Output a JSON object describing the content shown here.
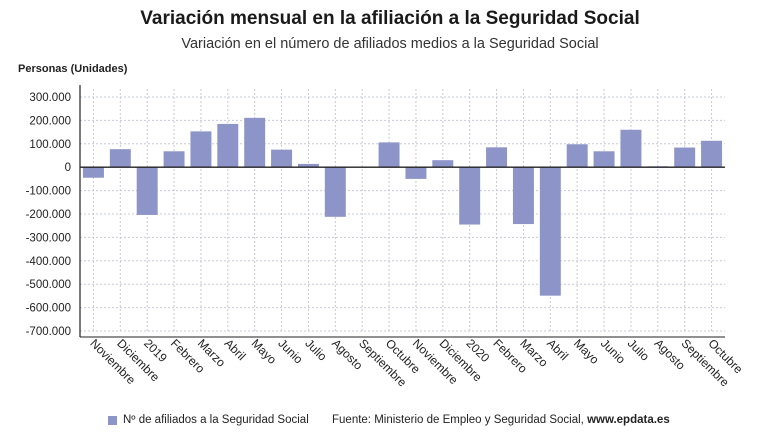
{
  "header": {
    "title": "Variación mensual en la afiliación a la Seguridad Social",
    "subtitle": "Variación en el número de afiliados medios a la Seguridad Social"
  },
  "chart_data": {
    "type": "bar",
    "ylabel": "Personas (Unidades)",
    "ylim": [
      -700000,
      300000
    ],
    "yticks": [
      300000,
      200000,
      100000,
      0,
      -100000,
      -200000,
      -300000,
      -400000,
      -500000,
      -600000,
      -700000
    ],
    "ytick_labels": [
      "300.000",
      "200.000",
      "100.000",
      "0",
      "-100.000",
      "-200.000",
      "-300.000",
      "-400.000",
      "-500.000",
      "-600.000",
      "-700.000"
    ],
    "categories": [
      "Noviembre",
      "Diciembre",
      "2019",
      "Febrero",
      "Marzo",
      "Abril",
      "Mayo",
      "Junio",
      "Julio",
      "Agosto",
      "Septiembre",
      "Octubre",
      "Noviembre",
      "Diciembre",
      "2020",
      "Febrero",
      "Marzo",
      "Abril",
      "Mayo",
      "Junio",
      "Julio",
      "Agosto",
      "Septiembre",
      "Octubre"
    ],
    "series": [
      {
        "name": "Nº de afiliados a la Seguridad Social",
        "values": [
          -45000,
          77000,
          -204000,
          68000,
          153000,
          185000,
          211000,
          75000,
          14000,
          -212000,
          1000,
          106000,
          -50000,
          30000,
          -245000,
          85000,
          -243000,
          -549000,
          98000,
          68000,
          160000,
          4000,
          84000,
          113000
        ]
      }
    ],
    "grid": true,
    "bar_color": "#8c94c8"
  },
  "legend": {
    "label": "Nº de afiliados a la Seguridad Social"
  },
  "footer": {
    "source_text": "Fuente: Ministerio de Empleo y Seguridad Social, ",
    "source_site": "www.epdata.es"
  }
}
